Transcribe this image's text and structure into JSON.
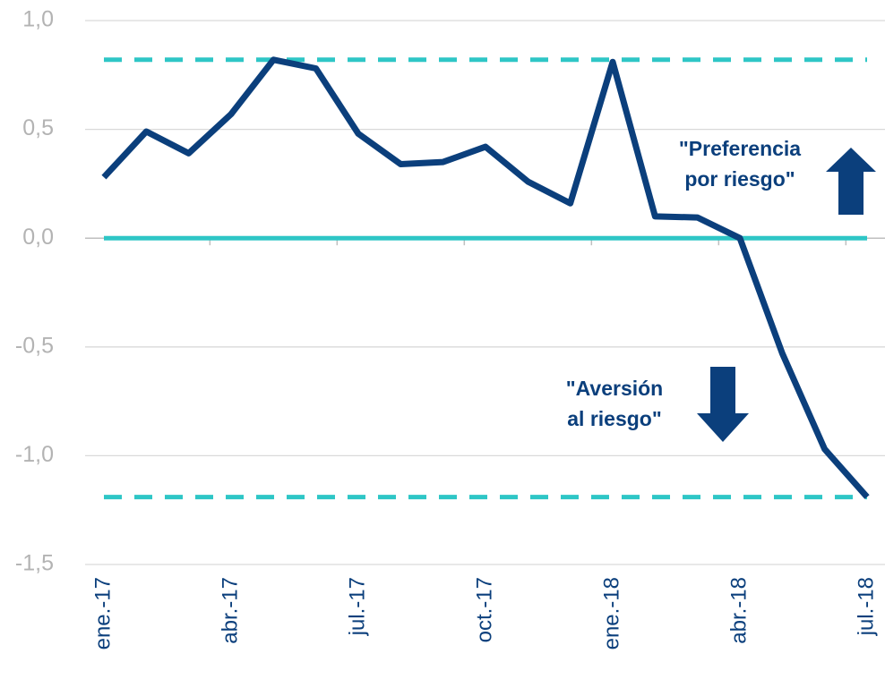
{
  "chart_data": {
    "type": "line",
    "categories": [
      "ene.-17",
      null,
      null,
      "abr.-17",
      null,
      null,
      "jul.-17",
      null,
      null,
      "oct.-17",
      null,
      null,
      "ene.-18",
      null,
      null,
      "abr.-18",
      null,
      null,
      "jul.-18"
    ],
    "values": [
      0.28,
      0.49,
      0.39,
      0.57,
      0.82,
      0.78,
      0.48,
      0.34,
      0.35,
      0.42,
      0.26,
      0.16,
      0.81,
      0.1,
      0.095,
      0.0,
      -0.53,
      -0.97,
      -1.19
    ],
    "color": "#0b3f7c",
    "ylim": [
      -1.5,
      1.0
    ],
    "yticks": [
      {
        "value": -1.5,
        "label": "-1,5"
      },
      {
        "value": -1.0,
        "label": "-1,0"
      },
      {
        "value": -0.5,
        "label": "-0,5"
      },
      {
        "value": 0,
        "label": "0,0"
      },
      {
        "value": 0.5,
        "label": "0,5"
      },
      {
        "value": 1.0,
        "label": "1,0"
      }
    ],
    "grid": true,
    "reference_lines": [
      {
        "value": 0.82,
        "style": "dashed"
      },
      {
        "value": 0,
        "style": "solid"
      },
      {
        "value": -1.19,
        "style": "dashed"
      }
    ],
    "reference_color": "#2ec6c6",
    "annotations": [
      {
        "lines": [
          "\"Preferencia",
          "por riesgo\""
        ]
      },
      {
        "lines": [
          "\"Aversión",
          "al riesgo\""
        ]
      }
    ]
  }
}
